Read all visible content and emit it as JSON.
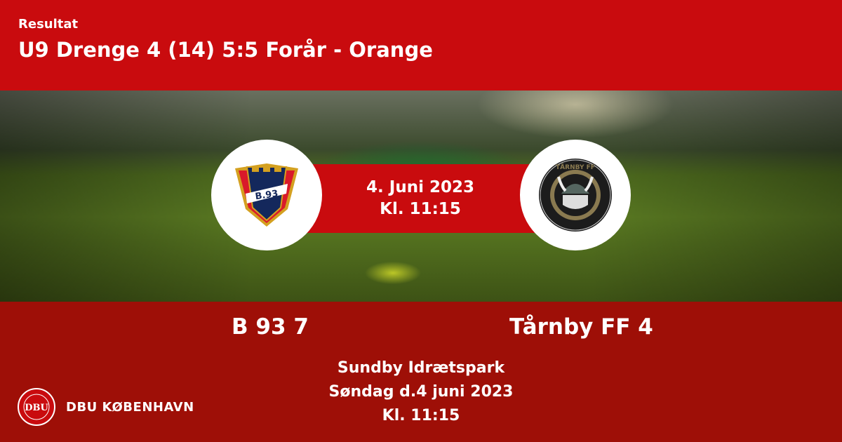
{
  "header": {
    "kicker": "Resultat",
    "title": "U9 Drenge 4 (14) 5:5 Forår - Orange"
  },
  "match": {
    "date": "4. Juni 2023",
    "time": "Kl. 11:15"
  },
  "home": {
    "name": "B 93",
    "score": "7",
    "label": "B 93 7",
    "logo_text": "B.93"
  },
  "away": {
    "name": "Tårnby FF",
    "score": "4",
    "label": "Tårnby FF 4",
    "logo_text": "TÅRNBY FF · 2005 KBH DANMARK"
  },
  "venue": {
    "name": "Sundby Idrætspark",
    "date": "Søndag d.4 juni 2023",
    "time": "Kl. 11:15"
  },
  "brand": {
    "name": "DBU KØBENHAVN",
    "seal_text": "DBU",
    "colors": {
      "header": "#c90b0e",
      "footer": "#9e0f07"
    }
  }
}
